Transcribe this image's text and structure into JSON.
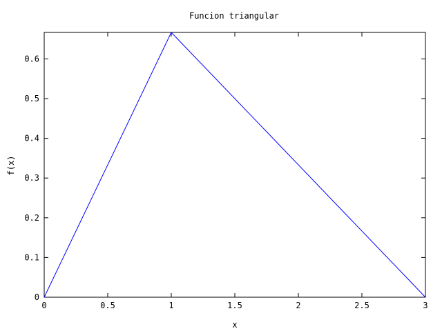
{
  "chart_data": {
    "type": "line",
    "title": "Funcion triangular",
    "xlabel": "x",
    "ylabel": "f(x)",
    "xlim": [
      0,
      3
    ],
    "ylim": [
      0,
      0.6667
    ],
    "grid": false,
    "legend": "none",
    "x_ticks": [
      "0",
      "0.5",
      "1",
      "1.5",
      "2",
      "2.5",
      "3"
    ],
    "y_ticks": [
      "0",
      "0.1",
      "0.2",
      "0.3",
      "0.4",
      "0.5",
      "0.6"
    ],
    "series": [
      {
        "color": "#0000ff",
        "x": [
          0,
          1,
          3
        ],
        "y": [
          0,
          0.6667,
          0
        ]
      }
    ]
  }
}
